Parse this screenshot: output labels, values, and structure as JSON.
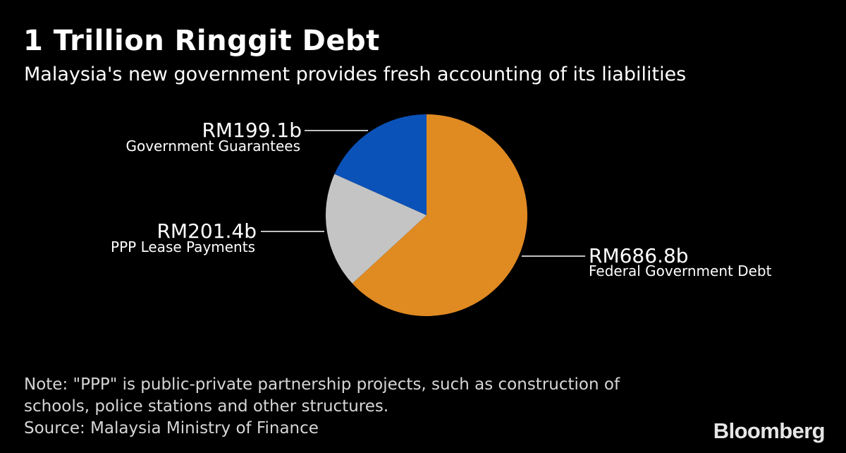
{
  "header": {
    "title": "1 Trillion Ringgit Debt",
    "subtitle": "Malaysia's new government provides fresh accounting of its liabilities"
  },
  "chart_data": {
    "type": "pie",
    "title": "1 Trillion Ringgit Debt",
    "subtitle": "Malaysia's new government provides fresh accounting of its liabilities",
    "categories": [
      "Federal Government Debt",
      "PPP Lease Payments",
      "Government Guarantees"
    ],
    "values": [
      686.8,
      201.4,
      199.1
    ],
    "value_labels": [
      "RM686.8b",
      "RM201.4b",
      "RM199.1b"
    ],
    "colors": [
      "#e08a22",
      "#c4c4c4",
      "#0b52b8"
    ],
    "start_angle": "12 o'clock",
    "direction": "clockwise",
    "legend": "none (direct labels)"
  },
  "footer": {
    "note_lines": [
      "Note: \"PPP\" is public-private partnership projects, such as construction of",
      "schools, police stations and other structures."
    ],
    "source": "Source: Malaysia Ministry of Finance",
    "brand": "Bloomberg"
  }
}
